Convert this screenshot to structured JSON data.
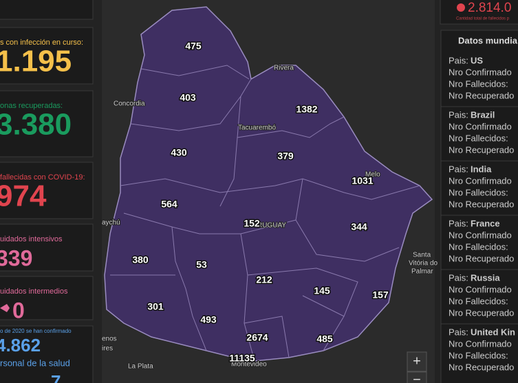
{
  "left_panel": {
    "cards": [
      {
        "label": "s con infección en curso:",
        "value": "1.195",
        "color": "#f5c04a"
      },
      {
        "label": "onas recuperadas:",
        "value": "3.380",
        "color": "#1a9b5e"
      },
      {
        "label": "fallecidas con COVID-19:",
        "value": "974",
        "color": "#e0444e"
      },
      {
        "label": "uidados intensivos",
        "value": "339",
        "color": "#e06a9a"
      },
      {
        "label": "uidados intermedios",
        "value": "0",
        "color": "#e06a9a"
      },
      {
        "label": "o de 2020 se han confirmado",
        "value": "4.862",
        "color": "#5aa0e8",
        "sublabel": "rsonal de la salud",
        "subvalue": "7"
      }
    ]
  },
  "map": {
    "counts": [
      475,
      403,
      1382,
      430,
      379,
      1031,
      564,
      152,
      344,
      380,
      53,
      212,
      145,
      157,
      301,
      493,
      2674,
      485,
      11135
    ],
    "places": [
      "Rivera",
      "Concordia",
      "Tacuarembó",
      "Melo",
      "RUGUAY",
      "aychú",
      "Santa",
      "Vitória do",
      "Palmar",
      "enos",
      "ires",
      "La Plata",
      "Montevideo"
    ],
    "zoom_in": "+",
    "zoom_out": "−"
  },
  "right_panel": {
    "total": "2.814.0",
    "caption": "Cantidad total de fallecidos p",
    "title": "Datos mundia",
    "countries": [
      {
        "pais": "Pais:",
        "name": "US",
        "confirmed": "Nro Confirmado",
        "deaths": "Nro Fallecidos:",
        "recovered": "Nro Recuperado"
      },
      {
        "pais": "Pais:",
        "name": "Brazil",
        "confirmed": "Nro Confirmado",
        "deaths": "Nro Fallecidos:",
        "recovered": "Nro Recuperado"
      },
      {
        "pais": "Pais:",
        "name": "India",
        "confirmed": "Nro Confirmado",
        "deaths": "Nro Fallecidos:",
        "recovered": "Nro Recuperado"
      },
      {
        "pais": "Pais:",
        "name": "France",
        "confirmed": "Nro Confirmado",
        "deaths": "Nro Fallecidos:",
        "recovered": "Nro Recuperado"
      },
      {
        "pais": "Pais:",
        "name": "Russia",
        "confirmed": "Nro Confirmado",
        "deaths": "Nro Fallecidos:",
        "recovered": "Nro Recuperado"
      },
      {
        "pais": "Pais:",
        "name": "United Kin",
        "confirmed": "Nro Confirmado",
        "deaths": "Nro Fallecidos:",
        "recovered": "Nro Recuperado"
      }
    ]
  }
}
